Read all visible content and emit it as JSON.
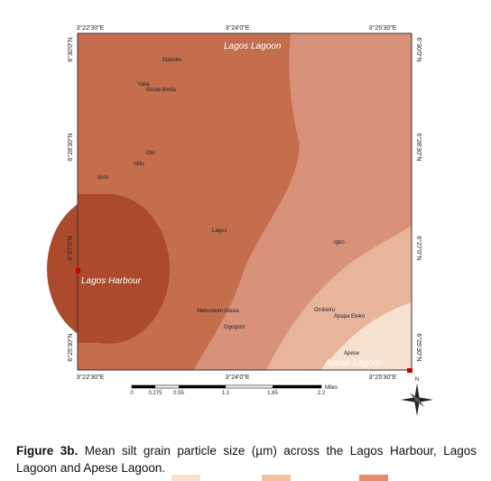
{
  "map": {
    "top_ticks": [
      "3°22'30\"E",
      "3°24'0\"E",
      "3°25'30\"E"
    ],
    "bottom_ticks": [
      "3°22'30\"E",
      "3°24'0\"E",
      "3°25'30\"E"
    ],
    "left_ticks": [
      "6°30'0\"N",
      "6°28'30\"N",
      "6°27'0\"N",
      "6°25'30\"N"
    ],
    "right_ticks": [
      "6°30'0\"N",
      "6°28'30\"N",
      "6°27'0\"N",
      "6°25'30\"N"
    ],
    "water": [
      "Lagos Lagoon",
      "Lagos Harbour",
      "Apese Lagoon"
    ],
    "places": [
      "Makoko",
      "Yaba",
      "Ebute-Metta",
      "Oto",
      "Iddo",
      "Ijora",
      "Lagos",
      "Igbo",
      "Mekunwen Alasia",
      "Ogogoro",
      "Orokeiru",
      "Apapa Eleko",
      "Apese"
    ],
    "scale": {
      "ticks": [
        "0",
        "0.275",
        "0.55",
        "1.1",
        "1.65",
        "2.2"
      ],
      "unit": "Miles"
    },
    "compass": "N"
  },
  "caption": {
    "label": "Figure 3b.",
    "text": "Mean silt grain particle size (µm) across the Lagos Harbour, Lagos Lagoon and Apese Lagoon."
  }
}
